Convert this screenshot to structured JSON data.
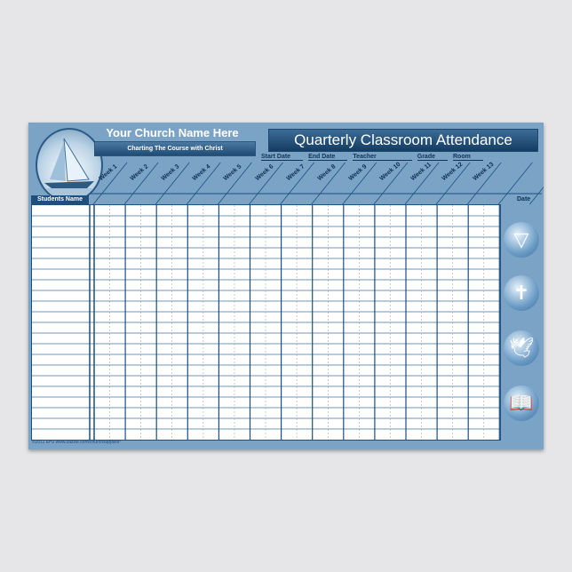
{
  "header": {
    "church_name": "Your Church Name Here",
    "tagline": "Charting The Course with Christ",
    "title": "Quarterly Classroom Attendance"
  },
  "fields": [
    "Start Date",
    "End Date",
    "Teacher",
    "Grade",
    "Room"
  ],
  "students_label": "Students Name",
  "date_label": "Date",
  "weeks": [
    "Week 1",
    "Week 2",
    "Week 3",
    "Week 4",
    "Week 5",
    "Week 6",
    "Week 7",
    "Week 8",
    "Week 9",
    "Week 10",
    "Week 11",
    "Week 12",
    "Week 13"
  ],
  "footer": "©2011 EHJ  www.zazzle.com/churchsupplies*",
  "icons": [
    "triangle-knot-icon",
    "cross-icon",
    "dove-icon",
    "bible-icon"
  ],
  "colors": {
    "background": "#7aa3c6",
    "accent": "#1d4f80"
  }
}
